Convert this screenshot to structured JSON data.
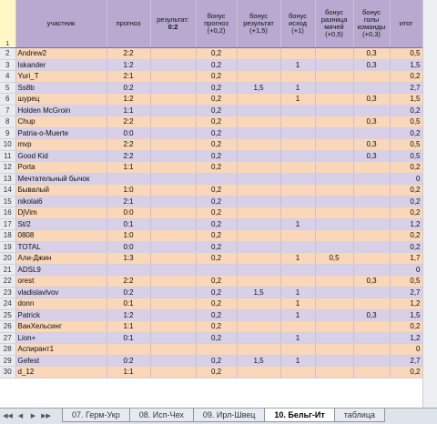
{
  "headers": {
    "row_number": "1",
    "participant": "участник",
    "forecast": "прогноз",
    "result_label": "результат:",
    "result_value": "0:2",
    "bonus_forecast": "бонус прогноз (+0,2)",
    "bonus_result": "бонус результат (+1,5)",
    "bonus_outcome": "бонус исход (+1)",
    "bonus_goal_diff": "бонус разница мячей (+0,5)",
    "bonus_team_goals": "бонус голы команды (+0,3)",
    "total": "итог"
  },
  "rows": [
    {
      "n": "2",
      "name": "Andrew2",
      "forecast": "2:2",
      "b1": "0,2",
      "b2": "",
      "b3": "",
      "b4": "",
      "b5": "0,3",
      "total": "0,5"
    },
    {
      "n": "3",
      "name": "Iskander",
      "forecast": "1:2",
      "b1": "0,2",
      "b2": "",
      "b3": "1",
      "b4": "",
      "b5": "0,3",
      "total": "1,5"
    },
    {
      "n": "4",
      "name": "Yuri_T",
      "forecast": "2:1",
      "b1": "0,2",
      "b2": "",
      "b3": "",
      "b4": "",
      "b5": "",
      "total": "0,2"
    },
    {
      "n": "5",
      "name": "Ss8b",
      "forecast": "0:2",
      "b1": "0,2",
      "b2": "1,5",
      "b3": "1",
      "b4": "",
      "b5": "",
      "total": "2,7"
    },
    {
      "n": "6",
      "name": "шурец",
      "forecast": "1:2",
      "b1": "0,2",
      "b2": "",
      "b3": "1",
      "b4": "",
      "b5": "0,3",
      "total": "1,5"
    },
    {
      "n": "7",
      "name": "Holden McGroin",
      "forecast": "1:1",
      "b1": "0,2",
      "b2": "",
      "b3": "",
      "b4": "",
      "b5": "",
      "total": "0,2"
    },
    {
      "n": "8",
      "name": "Chup",
      "forecast": "2:2",
      "b1": "0,2",
      "b2": "",
      "b3": "",
      "b4": "",
      "b5": "0,3",
      "total": "0,5"
    },
    {
      "n": "9",
      "name": "Patria-o-Muerte",
      "forecast": "0:0",
      "b1": "0,2",
      "b2": "",
      "b3": "",
      "b4": "",
      "b5": "",
      "total": "0,2"
    },
    {
      "n": "10",
      "name": "mvp",
      "forecast": "2:2",
      "b1": "0,2",
      "b2": "",
      "b3": "",
      "b4": "",
      "b5": "0,3",
      "total": "0,5"
    },
    {
      "n": "11",
      "name": "Good Kid",
      "forecast": "2:2",
      "b1": "0,2",
      "b2": "",
      "b3": "",
      "b4": "",
      "b5": "0,3",
      "total": "0,5"
    },
    {
      "n": "12",
      "name": "Porta",
      "forecast": "1:1",
      "b1": "0,2",
      "b2": "",
      "b3": "",
      "b4": "",
      "b5": "",
      "total": "0,2"
    },
    {
      "n": "13",
      "name": "Мечтательный бычок",
      "forecast": "",
      "b1": "",
      "b2": "",
      "b3": "",
      "b4": "",
      "b5": "",
      "total": "0"
    },
    {
      "n": "14",
      "name": "Бывалый",
      "forecast": "1:0",
      "b1": "0,2",
      "b2": "",
      "b3": "",
      "b4": "",
      "b5": "",
      "total": "0,2"
    },
    {
      "n": "15",
      "name": "nikolai6",
      "forecast": "2:1",
      "b1": "0,2",
      "b2": "",
      "b3": "",
      "b4": "",
      "b5": "",
      "total": "0,2"
    },
    {
      "n": "16",
      "name": "DjVim",
      "forecast": "0:0",
      "b1": "0,2",
      "b2": "",
      "b3": "",
      "b4": "",
      "b5": "",
      "total": "0,2"
    },
    {
      "n": "17",
      "name": "St/2",
      "forecast": "0:1",
      "b1": "0,2",
      "b2": "",
      "b3": "1",
      "b4": "",
      "b5": "",
      "total": "1,2"
    },
    {
      "n": "18",
      "name": "0808",
      "forecast": "1:0",
      "b1": "0,2",
      "b2": "",
      "b3": "",
      "b4": "",
      "b5": "",
      "total": "0,2"
    },
    {
      "n": "19",
      "name": "TOTAL",
      "forecast": "0:0",
      "b1": "0,2",
      "b2": "",
      "b3": "",
      "b4": "",
      "b5": "",
      "total": "0,2"
    },
    {
      "n": "20",
      "name": "Али-Джин",
      "forecast": "1:3",
      "b1": "0,2",
      "b2": "",
      "b3": "1",
      "b4": "0,5",
      "b5": "",
      "total": "1,7"
    },
    {
      "n": "21",
      "name": "ADSL9",
      "forecast": "",
      "b1": "",
      "b2": "",
      "b3": "",
      "b4": "",
      "b5": "",
      "total": "0"
    },
    {
      "n": "22",
      "name": "orest",
      "forecast": "2:2",
      "b1": "0,2",
      "b2": "",
      "b3": "",
      "b4": "",
      "b5": "0,3",
      "total": "0,5"
    },
    {
      "n": "23",
      "name": "vladislavlvov",
      "forecast": "0:2",
      "b1": "0,2",
      "b2": "1,5",
      "b3": "1",
      "b4": "",
      "b5": "",
      "total": "2,7"
    },
    {
      "n": "24",
      "name": "donn",
      "forecast": "0:1",
      "b1": "0,2",
      "b2": "",
      "b3": "1",
      "b4": "",
      "b5": "",
      "total": "1,2"
    },
    {
      "n": "25",
      "name": "Patrick",
      "forecast": "1:2",
      "b1": "0,2",
      "b2": "",
      "b3": "1",
      "b4": "",
      "b5": "0,3",
      "total": "1,5"
    },
    {
      "n": "26",
      "name": "ВанХельсинг",
      "forecast": "1:1",
      "b1": "0,2",
      "b2": "",
      "b3": "",
      "b4": "",
      "b5": "",
      "total": "0,2"
    },
    {
      "n": "27",
      "name": "Lion+",
      "forecast": "0:1",
      "b1": "0,2",
      "b2": "",
      "b3": "1",
      "b4": "",
      "b5": "",
      "total": "1,2"
    },
    {
      "n": "28",
      "name": "Аспирант1",
      "forecast": "",
      "b1": "",
      "b2": "",
      "b3": "",
      "b4": "",
      "b5": "",
      "total": "0"
    },
    {
      "n": "29",
      "name": "Gefest",
      "forecast": "0:2",
      "b1": "0,2",
      "b2": "1,5",
      "b3": "1",
      "b4": "",
      "b5": "",
      "total": "2,7"
    },
    {
      "n": "30",
      "name": "d_12",
      "forecast": "1:1",
      "b1": "0,2",
      "b2": "",
      "b3": "",
      "b4": "",
      "b5": "",
      "total": "0,2"
    }
  ],
  "tabs": [
    {
      "label": "07. Герм-Укр",
      "active": false
    },
    {
      "label": "08. Исп-Чех",
      "active": false
    },
    {
      "label": "09. Ирл-Швец",
      "active": false
    },
    {
      "label": "10. Бельг-Ит",
      "active": true
    },
    {
      "label": "таблица",
      "active": false
    }
  ],
  "nav": {
    "first": "◀◀",
    "prev": "◀",
    "next": "▶",
    "last": "▶▶"
  },
  "colors": {
    "header": "#b7a9cf",
    "odd_row": "#f9d7b8",
    "even_row": "#d8cfe8"
  }
}
